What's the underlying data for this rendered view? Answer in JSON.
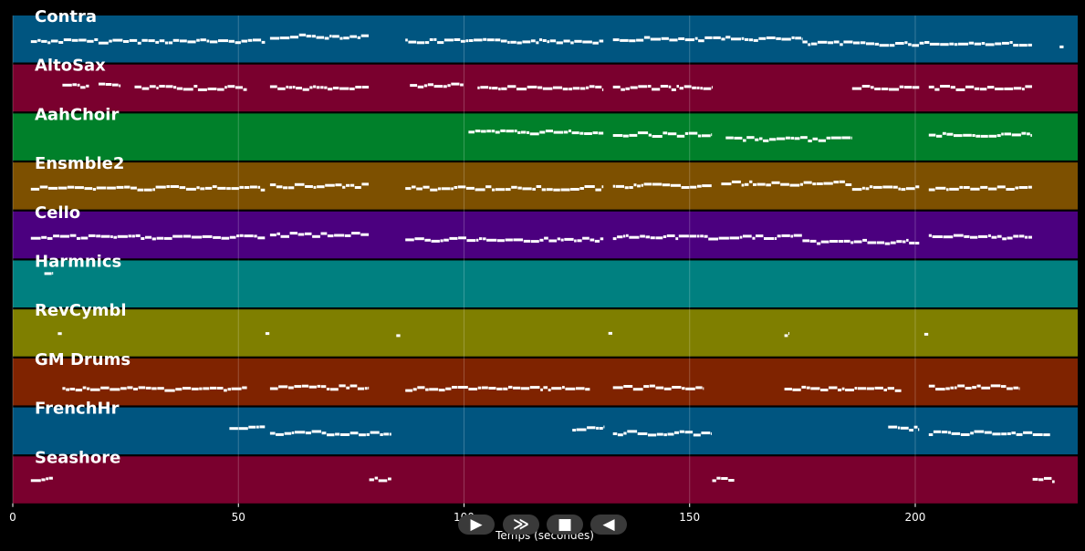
{
  "chart_data": {
    "type": "piano-roll",
    "xlabel": "Temps (secondes)",
    "xlim": [
      0,
      236
    ],
    "xticks": [
      0,
      50,
      100,
      150,
      200
    ],
    "grid": true,
    "tracks": [
      {
        "name": "Contra",
        "color": "#005580",
        "notes": [
          [
            4,
            56,
            0.55
          ],
          [
            57,
            79,
            0.45
          ],
          [
            87,
            131,
            0.55
          ],
          [
            133,
            175,
            0.5
          ],
          [
            175,
            226,
            0.6
          ],
          [
            232,
            233,
            0.7
          ]
        ]
      },
      {
        "name": "AltoSax",
        "color": "#7a002e",
        "notes": [
          [
            11,
            17,
            0.45
          ],
          [
            19,
            24,
            0.45
          ],
          [
            27,
            52,
            0.5
          ],
          [
            57,
            79,
            0.5
          ],
          [
            88,
            100,
            0.45
          ],
          [
            103,
            131,
            0.5
          ],
          [
            133,
            155,
            0.5
          ],
          [
            186,
            201,
            0.5
          ],
          [
            203,
            226,
            0.5
          ]
        ]
      },
      {
        "name": "AahChoir",
        "color": "#00802a",
        "notes": [
          [
            101,
            131,
            0.4
          ],
          [
            133,
            155,
            0.45
          ],
          [
            158,
            186,
            0.55
          ],
          [
            203,
            226,
            0.45
          ]
        ]
      },
      {
        "name": "Ensmble2",
        "color": "#7d5000",
        "notes": [
          [
            4,
            56,
            0.55
          ],
          [
            57,
            79,
            0.5
          ],
          [
            87,
            131,
            0.55
          ],
          [
            133,
            155,
            0.5
          ],
          [
            157,
            186,
            0.45
          ],
          [
            186,
            201,
            0.55
          ],
          [
            203,
            226,
            0.55
          ]
        ]
      },
      {
        "name": "Cello",
        "color": "#4b007f",
        "notes": [
          [
            4,
            56,
            0.55
          ],
          [
            57,
            79,
            0.5
          ],
          [
            87,
            131,
            0.6
          ],
          [
            133,
            175,
            0.55
          ],
          [
            175,
            201,
            0.65
          ],
          [
            203,
            226,
            0.55
          ]
        ]
      },
      {
        "name": "Harmnics",
        "color": "#008080",
        "notes": [
          [
            7,
            9,
            0.3
          ]
        ]
      },
      {
        "name": "RevCymbl",
        "color": "#7f7f00",
        "notes": [
          [
            10,
            11,
            0.52
          ],
          [
            56,
            57,
            0.52
          ],
          [
            85,
            86,
            0.52
          ],
          [
            132,
            133,
            0.52
          ],
          [
            171,
            172,
            0.52
          ],
          [
            202,
            203,
            0.52
          ]
        ]
      },
      {
        "name": "GM Drums",
        "color": "#7f2300",
        "notes": [
          [
            11,
            52,
            0.65
          ],
          [
            57,
            79,
            0.62
          ],
          [
            87,
            128,
            0.65
          ],
          [
            133,
            153,
            0.62
          ],
          [
            171,
            197,
            0.65
          ],
          [
            203,
            223,
            0.62
          ]
        ]
      },
      {
        "name": "FrenchHr",
        "color": "#005580",
        "notes": [
          [
            48,
            56,
            0.45
          ],
          [
            57,
            84,
            0.55
          ],
          [
            124,
            131,
            0.45
          ],
          [
            133,
            155,
            0.55
          ],
          [
            194,
            201,
            0.45
          ],
          [
            203,
            230,
            0.55
          ]
        ]
      },
      {
        "name": "Seashore",
        "color": "#7a002e",
        "notes": [
          [
            4,
            9,
            0.5
          ],
          [
            79,
            84,
            0.5
          ],
          [
            155,
            160,
            0.5
          ],
          [
            226,
            231,
            0.5
          ]
        ]
      }
    ]
  },
  "controls": {
    "play_forward": "▶",
    "fast_forward": "≫",
    "stop": "■",
    "rewind": "◀"
  }
}
